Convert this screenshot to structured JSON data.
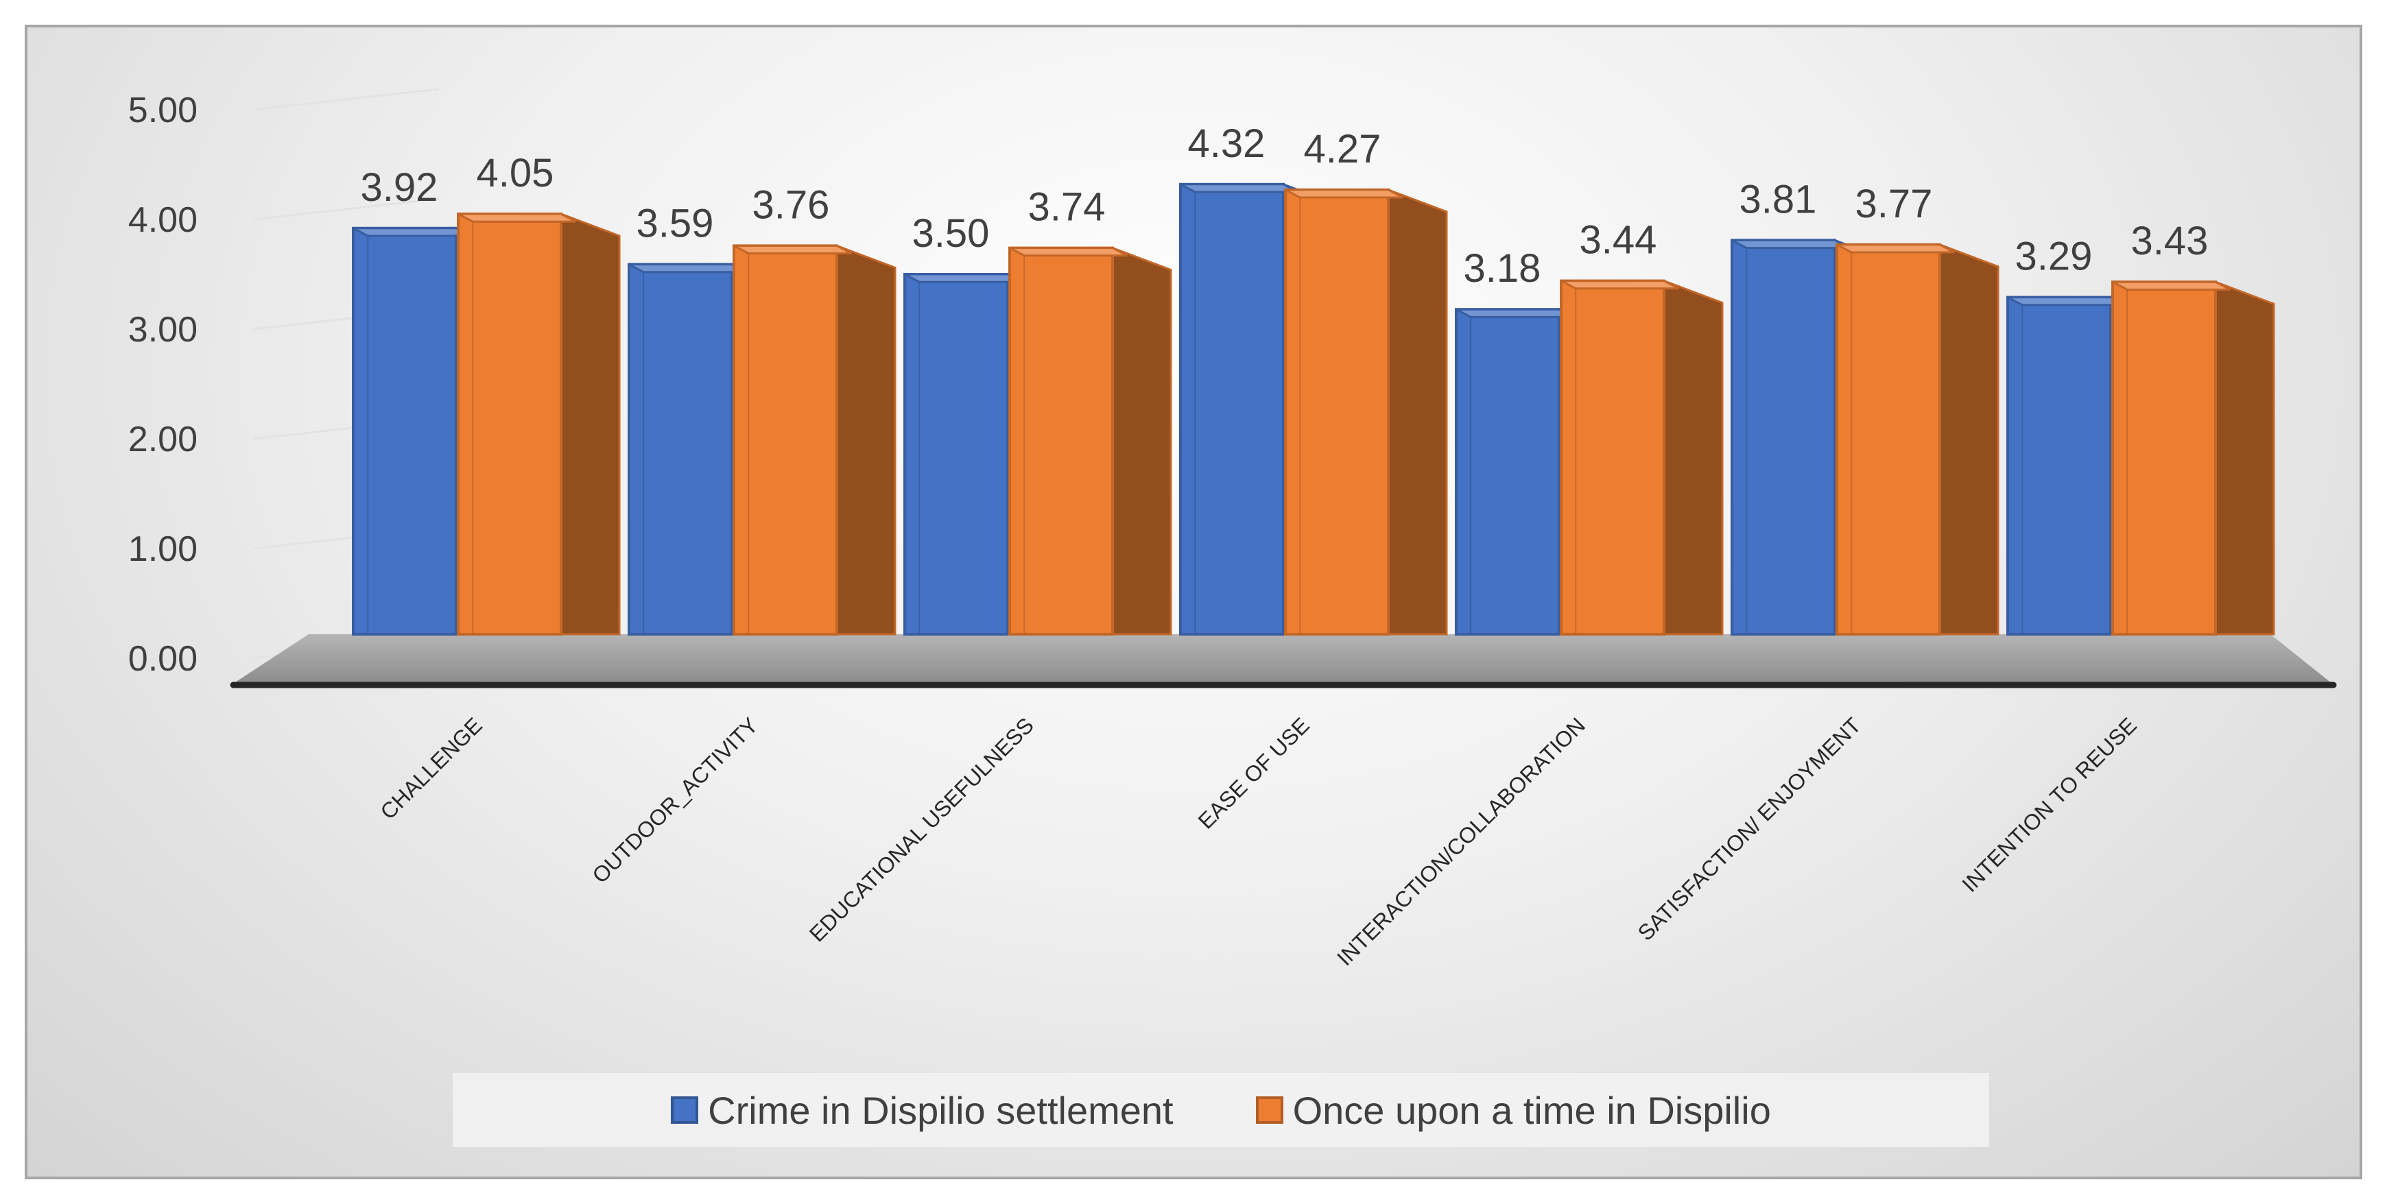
{
  "chart_data": {
    "type": "bar",
    "style": "3d-clustered-column",
    "title": "",
    "xlabel": "",
    "ylabel": "",
    "ylim": [
      0,
      5
    ],
    "yticks": [
      "0.00",
      "1.00",
      "2.00",
      "3.00",
      "4.00",
      "5.00"
    ],
    "categories": [
      "CHALLENGE",
      "OUTDOOR_ACTIVITY",
      "EDUCATIONAL USEFULNESS",
      "EASE OF USE",
      "INTERACTION/COLLABORATION",
      "SATISFACTION/ ENJOYMENT",
      "INTENTION TO REUSE"
    ],
    "series": [
      {
        "name": "Crime in Dispilio settlement",
        "values": [
          3.92,
          3.59,
          3.5,
          4.32,
          3.18,
          3.81,
          3.29
        ],
        "labels": [
          "3.92",
          "3.59",
          "3.50",
          "4.32",
          "3.18",
          "3.81",
          "3.29"
        ],
        "color": "#4472c4"
      },
      {
        "name": "Once upon a time in Dispilio",
        "values": [
          4.05,
          3.76,
          3.74,
          4.27,
          3.44,
          3.77,
          3.43
        ],
        "labels": [
          "4.05",
          "3.76",
          "3.74",
          "4.27",
          "3.44",
          "3.77",
          "3.43"
        ],
        "color": "#ed7d31"
      }
    ],
    "legend_position": "bottom",
    "grid": true
  }
}
